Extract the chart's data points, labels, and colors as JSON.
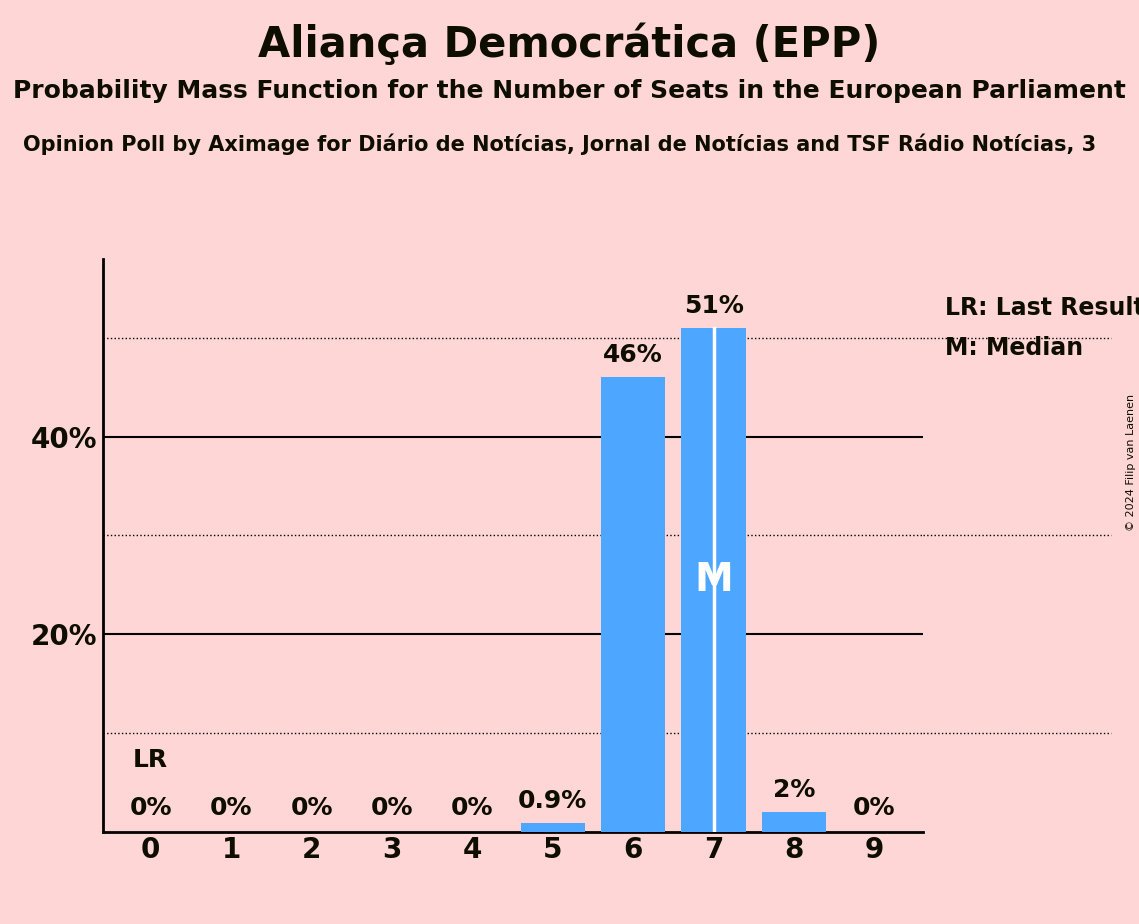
{
  "title": "Aliança Democrática (EPP)",
  "subtitle1": "Probability Mass Function for the Number of Seats in the European Parliament",
  "subtitle2": "Opinion Poll by Aximage for Diário de Notícias, Jornal de Notícias and TSF Rádio Notícias, 3",
  "copyright": "© 2024 Filip van Laenen",
  "seats": [
    0,
    1,
    2,
    3,
    4,
    5,
    6,
    7,
    8,
    9
  ],
  "probabilities": [
    0.0,
    0.0,
    0.0,
    0.0,
    0.0,
    0.9,
    46.0,
    51.0,
    2.0,
    0.0
  ],
  "bar_color": "#4da6ff",
  "median_seat": 7,
  "lr_seat": 0,
  "background_color": "#ffd6d6",
  "text_color": "#0d0d00",
  "ylim_max": 58,
  "dotted_grid": [
    10,
    30,
    50
  ],
  "solid_grid": [
    20,
    40
  ],
  "legend_lr": "LR: Last Result",
  "legend_m": "M: Median",
  "title_fontsize": 30,
  "subtitle1_fontsize": 18,
  "subtitle2_fontsize": 15,
  "axis_fontsize": 20,
  "bar_label_fontsize": 18,
  "legend_fontsize": 17
}
